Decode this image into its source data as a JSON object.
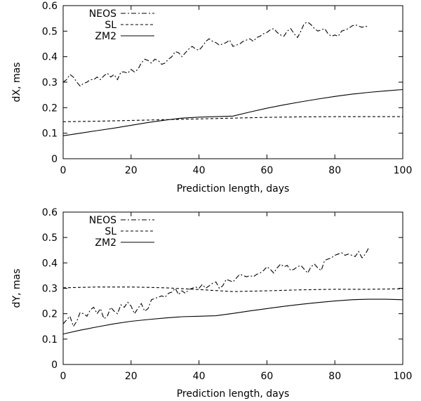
{
  "chart_data": [
    {
      "type": "line",
      "xlabel": "Prediction length, days",
      "ylabel": "dX, mas",
      "xlim": [
        0,
        100
      ],
      "ylim": [
        0,
        0.6
      ],
      "xticks": [
        "0",
        "20",
        "40",
        "60",
        "80",
        "100"
      ],
      "yticks": [
        "0",
        "0.1",
        "0.2",
        "0.3",
        "0.4",
        "0.5",
        "0.6"
      ],
      "legend_position": "top-left",
      "grid": false,
      "series": [
        {
          "name": "NEOS",
          "style": "dash-dot",
          "x": [
            0,
            1,
            2,
            3,
            4,
            5,
            6,
            7,
            8,
            9,
            10,
            11,
            12,
            13,
            14,
            15,
            16,
            17,
            18,
            19,
            20,
            21,
            22,
            23,
            24,
            25,
            26,
            27,
            28,
            29,
            30,
            31,
            32,
            33,
            34,
            35,
            36,
            37,
            38,
            39,
            40,
            41,
            42,
            43,
            44,
            45,
            46,
            47,
            48,
            49,
            50,
            51,
            52,
            53,
            54,
            55,
            56,
            57,
            58,
            59,
            60,
            61,
            62,
            63,
            64,
            65,
            66,
            67,
            68,
            69,
            70,
            71,
            72,
            73,
            74,
            75,
            76,
            77,
            78,
            79,
            80,
            81,
            82,
            83,
            84,
            85,
            86,
            87,
            88,
            89,
            90
          ],
          "y": [
            0.3,
            0.31,
            0.33,
            0.32,
            0.3,
            0.285,
            0.295,
            0.3,
            0.31,
            0.31,
            0.32,
            0.31,
            0.325,
            0.335,
            0.32,
            0.33,
            0.31,
            0.34,
            0.34,
            0.335,
            0.35,
            0.34,
            0.35,
            0.375,
            0.39,
            0.385,
            0.375,
            0.39,
            0.385,
            0.37,
            0.375,
            0.39,
            0.4,
            0.42,
            0.415,
            0.4,
            0.415,
            0.43,
            0.44,
            0.43,
            0.425,
            0.44,
            0.46,
            0.47,
            0.46,
            0.455,
            0.445,
            0.45,
            0.455,
            0.465,
            0.44,
            0.445,
            0.45,
            0.46,
            0.465,
            0.47,
            0.46,
            0.475,
            0.48,
            0.49,
            0.495,
            0.505,
            0.51,
            0.495,
            0.485,
            0.48,
            0.5,
            0.51,
            0.49,
            0.475,
            0.5,
            0.53,
            0.535,
            0.525,
            0.51,
            0.5,
            0.505,
            0.51,
            0.49,
            0.48,
            0.485,
            0.48,
            0.5,
            0.505,
            0.51,
            0.52,
            0.525,
            0.52,
            0.515,
            0.52,
            0.515
          ]
        },
        {
          "name": "SL",
          "style": "dashed",
          "x": [
            0,
            10,
            20,
            30,
            40,
            50,
            60,
            70,
            80,
            90,
            100
          ],
          "y": [
            0.145,
            0.147,
            0.15,
            0.153,
            0.156,
            0.159,
            0.162,
            0.164,
            0.165,
            0.165,
            0.165
          ]
        },
        {
          "name": "ZM2",
          "style": "solid",
          "x": [
            0,
            5,
            10,
            15,
            20,
            25,
            30,
            35,
            40,
            45,
            50,
            55,
            60,
            65,
            70,
            75,
            80,
            85,
            90,
            95,
            100
          ],
          "y": [
            0.09,
            0.1,
            0.11,
            0.12,
            0.131,
            0.142,
            0.151,
            0.159,
            0.163,
            0.165,
            0.167,
            0.183,
            0.198,
            0.211,
            0.223,
            0.234,
            0.244,
            0.253,
            0.26,
            0.266,
            0.271
          ]
        }
      ]
    },
    {
      "type": "line",
      "xlabel": "Prediction length, days",
      "ylabel": "dY, mas",
      "xlim": [
        0,
        100
      ],
      "ylim": [
        0,
        0.6
      ],
      "xticks": [
        "0",
        "20",
        "40",
        "60",
        "80",
        "100"
      ],
      "yticks": [
        "0",
        "0.1",
        "0.2",
        "0.3",
        "0.4",
        "0.5",
        "0.6"
      ],
      "legend_position": "top-left",
      "grid": false,
      "series": [
        {
          "name": "NEOS",
          "style": "dash-dot",
          "x": [
            0,
            1,
            2,
            3,
            4,
            5,
            6,
            7,
            8,
            9,
            10,
            11,
            12,
            13,
            14,
            15,
            16,
            17,
            18,
            19,
            20,
            21,
            22,
            23,
            24,
            25,
            26,
            27,
            28,
            29,
            30,
            31,
            32,
            33,
            34,
            35,
            36,
            37,
            38,
            39,
            40,
            41,
            42,
            43,
            44,
            45,
            46,
            47,
            48,
            49,
            50,
            51,
            52,
            53,
            54,
            55,
            56,
            57,
            58,
            59,
            60,
            61,
            62,
            63,
            64,
            65,
            66,
            67,
            68,
            69,
            70,
            71,
            72,
            73,
            74,
            75,
            76,
            77,
            78,
            79,
            80,
            81,
            82,
            83,
            84,
            85,
            86,
            87,
            88,
            89,
            90
          ],
          "y": [
            0.16,
            0.175,
            0.19,
            0.15,
            0.17,
            0.205,
            0.2,
            0.19,
            0.215,
            0.225,
            0.2,
            0.22,
            0.18,
            0.19,
            0.225,
            0.21,
            0.2,
            0.235,
            0.225,
            0.245,
            0.23,
            0.2,
            0.22,
            0.24,
            0.21,
            0.22,
            0.255,
            0.26,
            0.265,
            0.27,
            0.265,
            0.28,
            0.285,
            0.3,
            0.275,
            0.29,
            0.28,
            0.295,
            0.3,
            0.305,
            0.3,
            0.315,
            0.3,
            0.31,
            0.32,
            0.325,
            0.3,
            0.31,
            0.335,
            0.33,
            0.325,
            0.34,
            0.355,
            0.35,
            0.345,
            0.35,
            0.345,
            0.355,
            0.36,
            0.37,
            0.385,
            0.375,
            0.36,
            0.38,
            0.395,
            0.385,
            0.39,
            0.37,
            0.375,
            0.385,
            0.39,
            0.375,
            0.36,
            0.385,
            0.395,
            0.38,
            0.37,
            0.41,
            0.415,
            0.42,
            0.43,
            0.435,
            0.44,
            0.43,
            0.435,
            0.43,
            0.425,
            0.445,
            0.42,
            0.435,
            0.46
          ]
        },
        {
          "name": "SL",
          "style": "dashed",
          "x": [
            0,
            10,
            20,
            30,
            40,
            50,
            60,
            70,
            80,
            90,
            100
          ],
          "y": [
            0.302,
            0.305,
            0.305,
            0.302,
            0.295,
            0.287,
            0.29,
            0.294,
            0.296,
            0.296,
            0.298
          ]
        },
        {
          "name": "ZM2",
          "style": "solid",
          "x": [
            0,
            5,
            10,
            15,
            20,
            25,
            30,
            35,
            40,
            45,
            50,
            55,
            60,
            65,
            70,
            75,
            80,
            85,
            90,
            95,
            100
          ],
          "y": [
            0.12,
            0.135,
            0.148,
            0.16,
            0.17,
            0.177,
            0.183,
            0.188,
            0.19,
            0.192,
            0.201,
            0.211,
            0.22,
            0.229,
            0.237,
            0.244,
            0.25,
            0.255,
            0.257,
            0.257,
            0.255
          ]
        }
      ]
    }
  ]
}
